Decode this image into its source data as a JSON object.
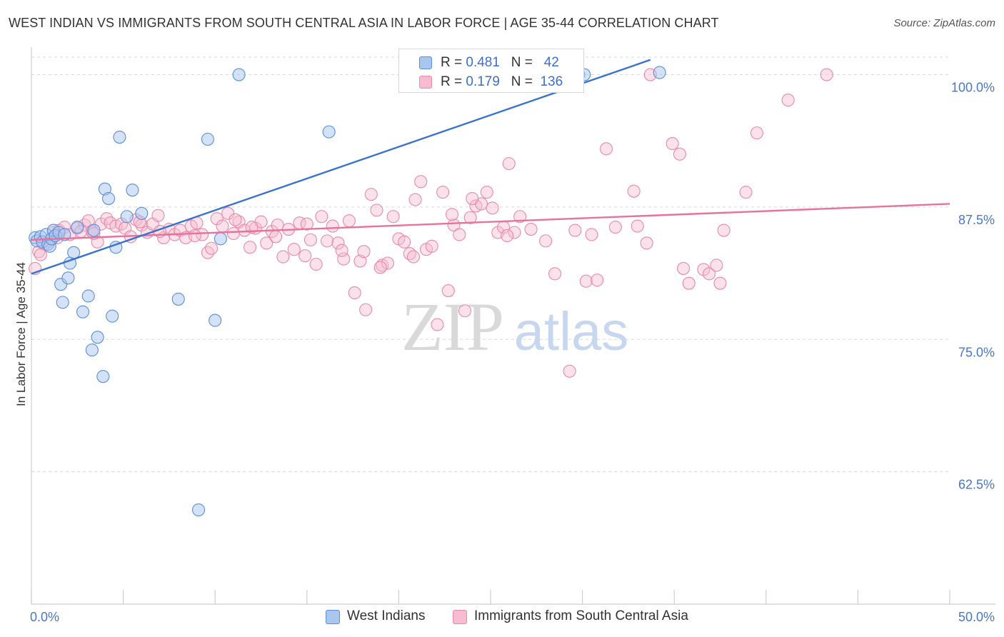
{
  "title": "WEST INDIAN VS IMMIGRANTS FROM SOUTH CENTRAL ASIA IN LABOR FORCE | AGE 35-44 CORRELATION CHART",
  "source": "Source: ZipAtlas.com",
  "watermark": {
    "zip": "ZIP",
    "atlas": "atlas"
  },
  "legend": {
    "r_label": "R =",
    "n_label": "N =",
    "rows": [
      {
        "r": "0.481",
        "n": "42",
        "color": "#a9c6ef",
        "edge": "#5b8fd9"
      },
      {
        "r": "0.179",
        "n": "136",
        "color": "#f7bcd0",
        "edge": "#e88aa9"
      }
    ]
  },
  "colors": {
    "blue": "#3a72d0",
    "pink": "#e8729c",
    "tick_text": "#4a77c8",
    "grid": "#d9d9d9"
  },
  "chart_data": {
    "type": "scatter",
    "title": "WEST INDIAN VS IMMIGRANTS FROM SOUTH CENTRAL ASIA IN LABOR FORCE | AGE 35-44 CORRELATION CHART",
    "xlabel": "",
    "ylabel": "In Labor Force | Age 35-44",
    "xlim": [
      0,
      50
    ],
    "ylim": [
      50,
      102.6
    ],
    "x_tick_labels": [
      "0.0%",
      "50.0%"
    ],
    "y_ticks": [
      62.5,
      75.0,
      87.5,
      100.0
    ],
    "y_tick_labels": [
      "62.5%",
      "75.0%",
      "87.5%",
      "100.0%"
    ],
    "grid": true,
    "legend_placement": "top-center",
    "series": [
      {
        "name": "West Indians",
        "r": 0.481,
        "n": 42,
        "trend": {
          "x": [
            0,
            33.7
          ],
          "y": [
            81.2,
            101.4
          ]
        },
        "points": [
          [
            0.2,
            84.6
          ],
          [
            0.3,
            84.3
          ],
          [
            0.5,
            84.7
          ],
          [
            0.6,
            84.2
          ],
          [
            0.8,
            84.9
          ],
          [
            0.9,
            84.0
          ],
          [
            1.0,
            83.8
          ],
          [
            1.1,
            84.5
          ],
          [
            1.2,
            85.3
          ],
          [
            1.3,
            84.8
          ],
          [
            1.5,
            85.1
          ],
          [
            1.6,
            80.2
          ],
          [
            1.7,
            78.5
          ],
          [
            1.8,
            84.9
          ],
          [
            2.0,
            80.8
          ],
          [
            2.1,
            82.2
          ],
          [
            2.3,
            83.2
          ],
          [
            2.5,
            85.6
          ],
          [
            2.8,
            77.6
          ],
          [
            3.1,
            79.1
          ],
          [
            3.3,
            74.0
          ],
          [
            3.4,
            85.3
          ],
          [
            3.6,
            75.2
          ],
          [
            3.9,
            71.5
          ],
          [
            4.0,
            89.2
          ],
          [
            4.2,
            88.3
          ],
          [
            4.4,
            77.2
          ],
          [
            4.6,
            83.7
          ],
          [
            4.8,
            94.1
          ],
          [
            5.2,
            86.6
          ],
          [
            5.5,
            89.1
          ],
          [
            6.0,
            86.9
          ],
          [
            8.0,
            78.8
          ],
          [
            9.1,
            58.9
          ],
          [
            9.6,
            93.9
          ],
          [
            10.0,
            76.8
          ],
          [
            10.3,
            84.5
          ],
          [
            11.3,
            100.0
          ],
          [
            16.2,
            94.6
          ],
          [
            29.8,
            100.0
          ],
          [
            30.1,
            100.0
          ],
          [
            34.2,
            100.2
          ]
        ]
      },
      {
        "name": "Immigrants from South Central Asia",
        "r": 0.179,
        "n": 136,
        "trend": {
          "x": [
            0,
            50
          ],
          "y": [
            84.4,
            87.8
          ]
        },
        "points": [
          [
            0.2,
            81.7
          ],
          [
            0.4,
            83.3
          ],
          [
            0.7,
            84.0
          ],
          [
            1.0,
            84.3
          ],
          [
            1.2,
            85.1
          ],
          [
            1.5,
            85.3
          ],
          [
            1.8,
            85.6
          ],
          [
            2.1,
            84.9
          ],
          [
            2.5,
            85.5
          ],
          [
            2.9,
            85.8
          ],
          [
            3.1,
            86.2
          ],
          [
            3.3,
            85.2
          ],
          [
            3.6,
            84.2
          ],
          [
            3.8,
            85.9
          ],
          [
            4.1,
            86.4
          ],
          [
            4.3,
            86.0
          ],
          [
            4.6,
            85.7
          ],
          [
            4.9,
            85.9
          ],
          [
            5.1,
            85.5
          ],
          [
            5.4,
            84.7
          ],
          [
            5.7,
            86.3
          ],
          [
            6.0,
            85.8
          ],
          [
            6.3,
            85.1
          ],
          [
            6.6,
            85.9
          ],
          [
            6.9,
            86.7
          ],
          [
            7.2,
            84.6
          ],
          [
            7.5,
            85.4
          ],
          [
            7.8,
            84.9
          ],
          [
            8.1,
            85.3
          ],
          [
            8.4,
            84.6
          ],
          [
            8.7,
            85.7
          ],
          [
            9.0,
            86.0
          ],
          [
            9.3,
            84.9
          ],
          [
            9.6,
            83.2
          ],
          [
            9.8,
            83.6
          ],
          [
            10.1,
            86.4
          ],
          [
            10.4,
            85.7
          ],
          [
            10.7,
            86.9
          ],
          [
            11.0,
            85.0
          ],
          [
            11.3,
            86.1
          ],
          [
            11.6,
            85.3
          ],
          [
            11.9,
            83.7
          ],
          [
            12.2,
            85.5
          ],
          [
            12.5,
            86.1
          ],
          [
            12.8,
            84.1
          ],
          [
            13.1,
            85.2
          ],
          [
            13.4,
            85.8
          ],
          [
            13.7,
            82.8
          ],
          [
            14.0,
            85.4
          ],
          [
            14.3,
            83.5
          ],
          [
            14.6,
            86.0
          ],
          [
            14.9,
            82.9
          ],
          [
            15.2,
            84.4
          ],
          [
            15.5,
            82.1
          ],
          [
            15.8,
            86.6
          ],
          [
            16.1,
            84.3
          ],
          [
            16.4,
            85.7
          ],
          [
            16.7,
            84.1
          ],
          [
            17.0,
            82.6
          ],
          [
            17.3,
            86.2
          ],
          [
            17.6,
            79.4
          ],
          [
            17.9,
            82.4
          ],
          [
            18.2,
            77.8
          ],
          [
            18.5,
            88.7
          ],
          [
            18.8,
            87.2
          ],
          [
            19.1,
            82.0
          ],
          [
            19.4,
            82.2
          ],
          [
            19.7,
            86.6
          ],
          [
            20.0,
            84.5
          ],
          [
            20.3,
            84.2
          ],
          [
            20.6,
            83.1
          ],
          [
            20.9,
            88.2
          ],
          [
            21.2,
            89.9
          ],
          [
            21.5,
            83.5
          ],
          [
            21.8,
            83.8
          ],
          [
            22.1,
            76.4
          ],
          [
            22.4,
            88.9
          ],
          [
            22.7,
            79.6
          ],
          [
            23.0,
            85.8
          ],
          [
            23.3,
            84.9
          ],
          [
            23.6,
            77.7
          ],
          [
            23.9,
            86.5
          ],
          [
            24.2,
            87.6
          ],
          [
            24.5,
            87.8
          ],
          [
            24.8,
            88.9
          ],
          [
            25.1,
            87.4
          ],
          [
            25.4,
            85.1
          ],
          [
            25.7,
            85.6
          ],
          [
            26.0,
            91.6
          ],
          [
            26.3,
            85.1
          ],
          [
            26.6,
            86.6
          ],
          [
            28.0,
            84.3
          ],
          [
            28.5,
            81.2
          ],
          [
            29.3,
            72.0
          ],
          [
            29.6,
            85.3
          ],
          [
            30.2,
            80.5
          ],
          [
            30.8,
            80.6
          ],
          [
            31.3,
            93.0
          ],
          [
            31.8,
            85.6
          ],
          [
            32.8,
            89.0
          ],
          [
            33.5,
            84.1
          ],
          [
            33.7,
            100.0
          ],
          [
            34.9,
            93.5
          ],
          [
            35.3,
            92.5
          ],
          [
            35.5,
            81.7
          ],
          [
            35.8,
            80.3
          ],
          [
            36.6,
            81.6
          ],
          [
            36.9,
            81.2
          ],
          [
            37.3,
            82.0
          ],
          [
            37.5,
            80.3
          ],
          [
            37.7,
            85.3
          ],
          [
            38.9,
            88.9
          ],
          [
            39.5,
            94.5
          ],
          [
            41.2,
            97.6
          ],
          [
            43.3,
            100.0
          ],
          [
            0.5,
            83.0
          ],
          [
            1.4,
            84.6
          ],
          [
            2.7,
            85.2
          ],
          [
            3.4,
            85.0
          ],
          [
            5.9,
            86.1
          ],
          [
            7.0,
            85.2
          ],
          [
            8.9,
            84.8
          ],
          [
            11.1,
            86.3
          ],
          [
            12.0,
            85.6
          ],
          [
            13.3,
            84.7
          ],
          [
            15.0,
            85.9
          ],
          [
            16.9,
            83.4
          ],
          [
            18.1,
            83.3
          ],
          [
            19.0,
            81.8
          ],
          [
            20.8,
            82.8
          ],
          [
            22.9,
            86.8
          ],
          [
            24.0,
            88.3
          ],
          [
            25.9,
            84.8
          ],
          [
            27.2,
            85.4
          ],
          [
            30.5,
            84.9
          ],
          [
            33.0,
            85.7
          ]
        ]
      }
    ]
  }
}
